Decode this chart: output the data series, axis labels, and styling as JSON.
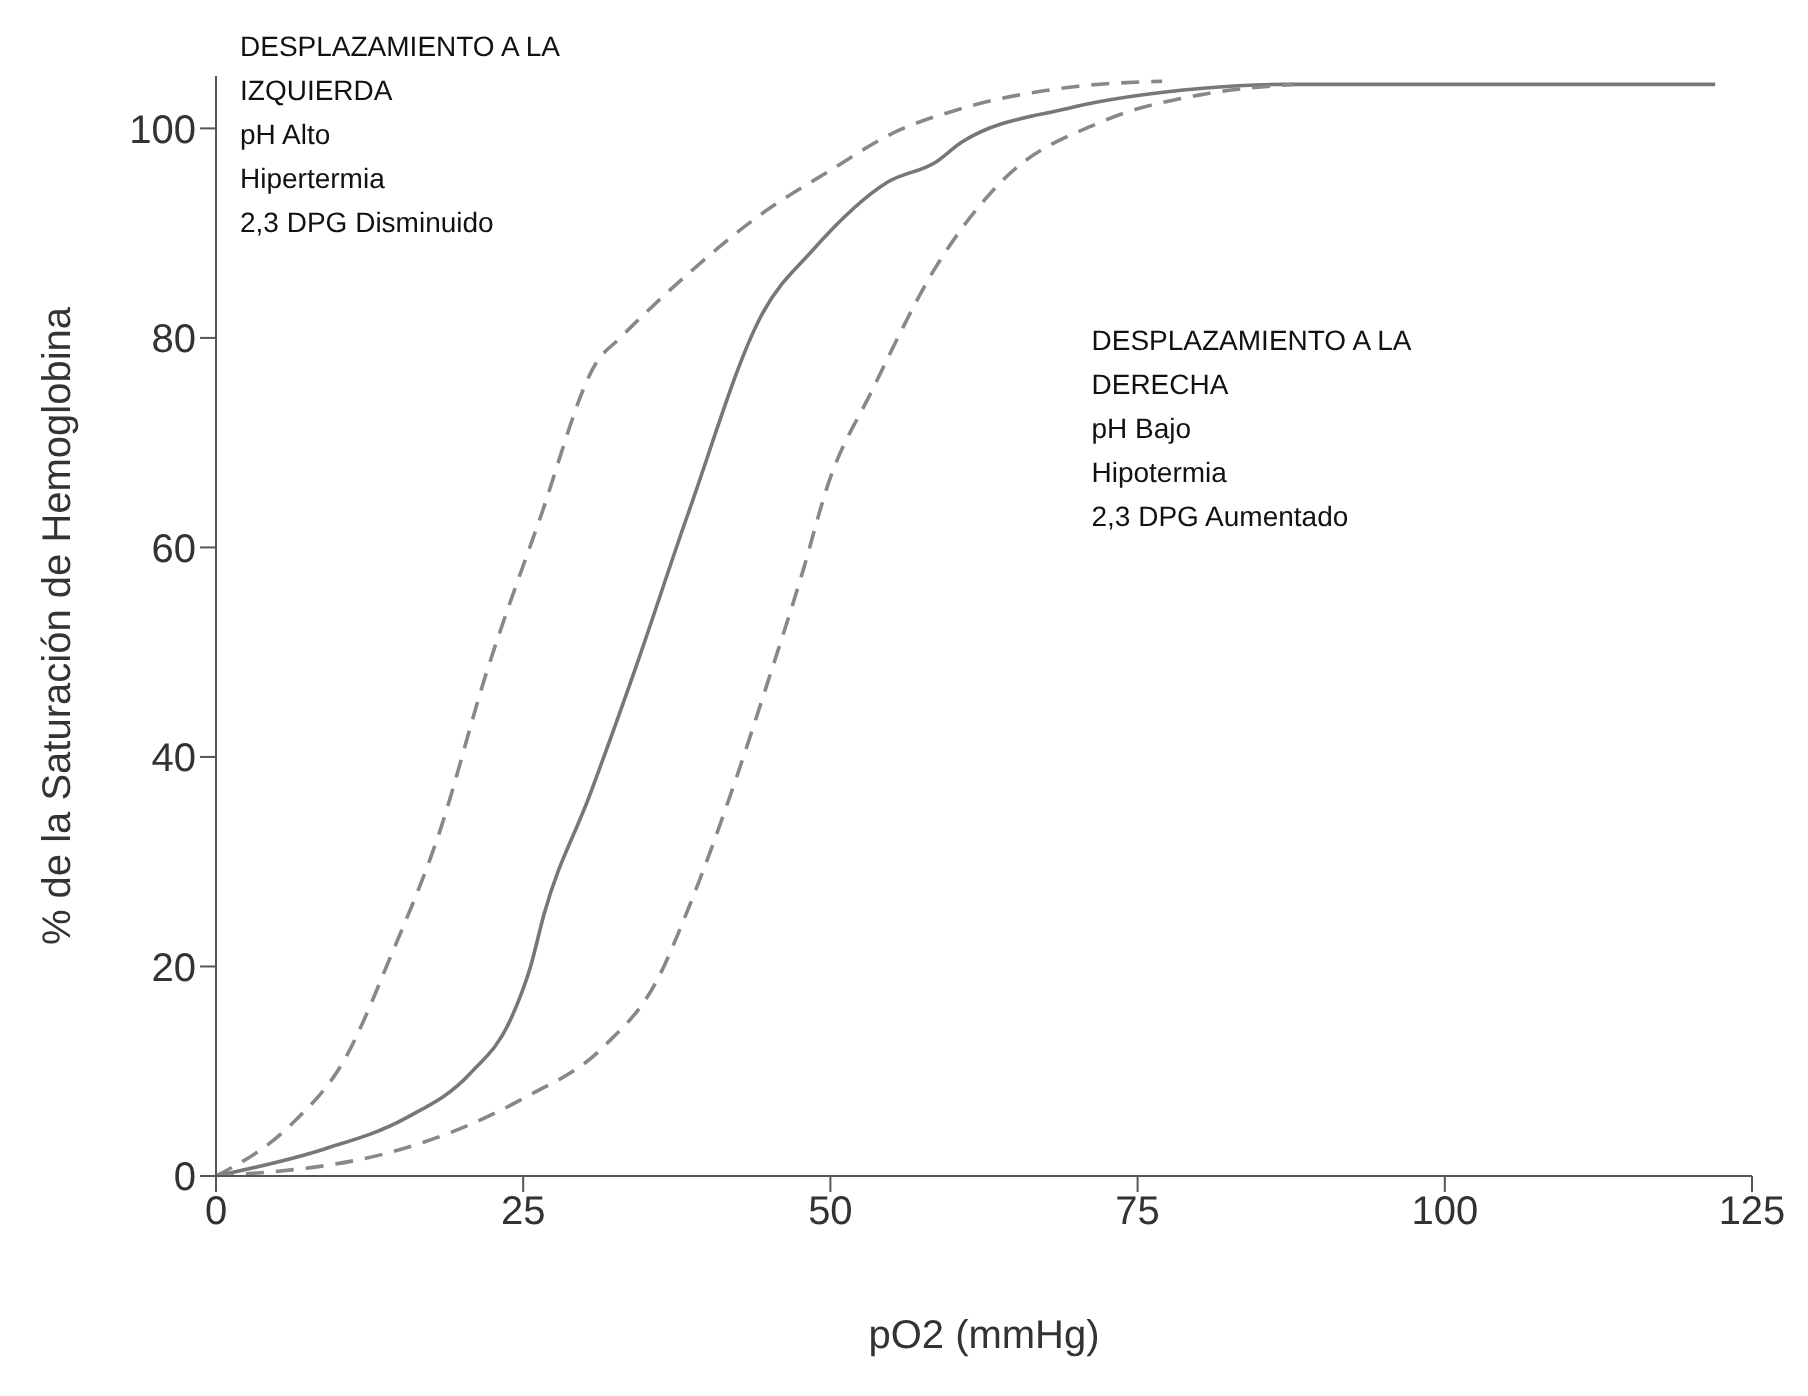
{
  "chart_data": {
    "type": "line",
    "xlabel": "pO2 (mmHg)",
    "ylabel": "% de la Saturación de Hemoglobina",
    "xlim": [
      0,
      125
    ],
    "xticks": [
      0,
      25,
      50,
      75,
      100,
      125
    ],
    "ylim": [
      0,
      105
    ],
    "yticks": [
      0,
      20,
      40,
      60,
      80,
      100
    ],
    "marker": "none",
    "series": [
      {
        "color": "#888888",
        "line_style": "dashed",
        "x": [
          0,
          6.1,
          10.5,
          14.3,
          18.1,
          22,
          26.2,
          31.1,
          32.7,
          38.5,
          44,
          50,
          55,
          61,
          70,
          77
        ],
        "values": [
          0,
          4.9,
          11.2,
          21.2,
          32.5,
          48,
          62.2,
          77.9,
          79.8,
          86.2,
          91.5,
          96,
          99.5,
          102,
          104,
          104.5
        ]
      },
      {
        "color": "#777777",
        "line_style": "solid",
        "x": [
          0,
          8.9,
          15.4,
          20.7,
          24,
          25.6,
          26.7,
          30.4,
          34,
          38.5,
          44.5,
          48.5,
          54.7,
          58.6,
          60.7,
          69.3,
          80.1,
          87,
          122
        ],
        "values": [
          0,
          2.6,
          5.5,
          9.8,
          15,
          20,
          25,
          36.3,
          48,
          63.5,
          82.4,
          88.3,
          94.9,
          96.8,
          98.7,
          101.9,
          103.8,
          104.2,
          104.2
        ]
      },
      {
        "color": "#888888",
        "line_style": "dashed",
        "x": [
          0,
          14.3,
          25,
          31.6,
          35.9,
          38.5,
          42.4,
          45,
          47.7,
          49.8,
          53.4,
          58.6,
          63.9,
          72,
          80.1,
          87.7
        ],
        "values": [
          0,
          2.3,
          7.4,
          12.4,
          18.7,
          25.7,
          38.2,
          47.5,
          57.5,
          66,
          75,
          86.8,
          94.9,
          100.6,
          103.2,
          104.2
        ]
      }
    ],
    "annotations": [
      "DESPLAZAMIENTO A LA\nIZQUIERDA\npH Alto\nHipertermia\n2,3 DPG Disminuido",
      "DESPLAZAMIENTO A LA\nDERECHA\npH Bajo\nHipotermia\n2,3 DPG Aumentado"
    ]
  }
}
